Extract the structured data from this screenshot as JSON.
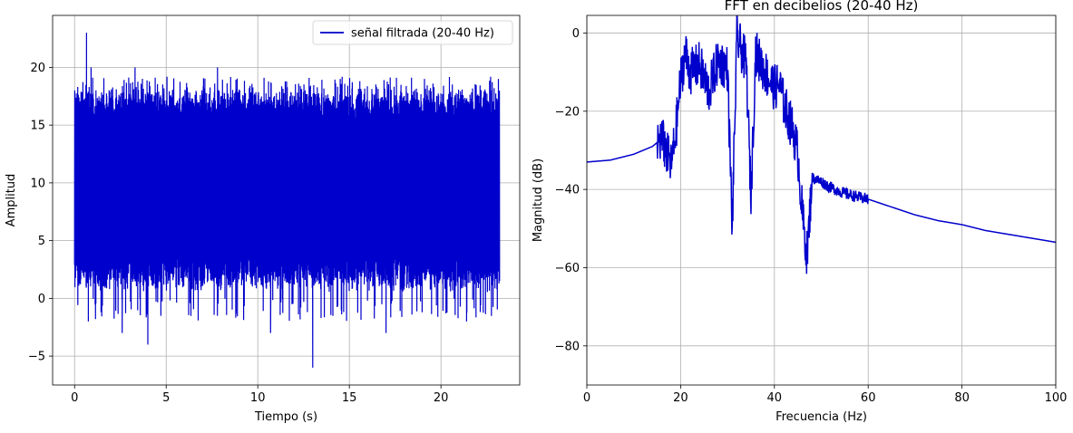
{
  "chart_data": [
    {
      "type": "line",
      "title": "",
      "xlabel": "Tiempo (s)",
      "ylabel": "Amplitud",
      "xlim": [
        -1.2,
        24.3
      ],
      "ylim": [
        -7.5,
        24.5
      ],
      "xticks": [
        0,
        5,
        10,
        15,
        20
      ],
      "yticks": [
        -5,
        0,
        5,
        10,
        15,
        20
      ],
      "grid": true,
      "legend": {
        "placement": "upper-right",
        "entries": [
          "señal filtrada (20-40 Hz)"
        ]
      },
      "series": [
        {
          "name": "señal filtrada (20-40 Hz)",
          "color": "#0000cc",
          "description_range": [
            0.0,
            23.2
          ],
          "band_low": [
            3,
            4
          ],
          "band_high": [
            15,
            17
          ],
          "peaks": [
            [
              0.65,
              23
            ],
            [
              0.9,
              20
            ],
            [
              3.3,
              20
            ],
            [
              7.8,
              20
            ],
            [
              14.5,
              19
            ],
            [
              19.1,
              19
            ]
          ],
          "troughs": [
            [
              0.75,
              -2
            ],
            [
              2.6,
              -3
            ],
            [
              4.0,
              -4
            ],
            [
              10.7,
              -3
            ],
            [
              13.0,
              -6
            ],
            [
              17.0,
              -3
            ],
            [
              21.4,
              -2
            ]
          ],
          "x": [
            0.0,
            0.15,
            0.3,
            0.45,
            0.6,
            0.65,
            0.75,
            0.9,
            1.2,
            1.8,
            2.6,
            3.3,
            4.0,
            5.0,
            6.0,
            7.0,
            7.8,
            9.0,
            10.7,
            12.0,
            13.0,
            14.5,
            16.0,
            17.0,
            18.0,
            19.1,
            20.0,
            21.4,
            22.5,
            23.2
          ],
          "y": [
            15,
            3,
            17,
            2,
            19,
            23,
            -2,
            20,
            0,
            18,
            -3,
            20,
            -4,
            18,
            0,
            17,
            20,
            1,
            -3,
            18,
            -6,
            19,
            1,
            -3,
            18,
            19,
            0,
            -2,
            17,
            15
          ]
        }
      ]
    },
    {
      "type": "line",
      "title": "FFT en decibelios (20-40 Hz)",
      "xlabel": "Frecuencia (Hz)",
      "ylabel": "Magnitud (dB)",
      "xlim": [
        0,
        100
      ],
      "ylim": [
        -90,
        4.5
      ],
      "xticks": [
        0,
        20,
        40,
        60,
        80,
        100
      ],
      "yticks": [
        0,
        -20,
        -40,
        -60,
        -80
      ],
      "grid": true,
      "series": [
        {
          "color": "#0000cc",
          "x": [
            0,
            5,
            10,
            14,
            16,
            18,
            19,
            20,
            21,
            22,
            24,
            26,
            28,
            30,
            31,
            32,
            34,
            35,
            36,
            38,
            40,
            41,
            42,
            44,
            45,
            46,
            47,
            48,
            50,
            52,
            55,
            58,
            60,
            65,
            70,
            75,
            80,
            85,
            90,
            95,
            100
          ],
          "y": [
            -33,
            -32.5,
            -31,
            -29,
            -27,
            -34,
            -25,
            -12,
            -5,
            -10,
            -8,
            -15,
            -7,
            -9,
            -50,
            -1,
            -8,
            -42,
            -5,
            -10,
            -14,
            -13,
            -18,
            -25,
            -31,
            -47,
            -57,
            -37,
            -38,
            -39.5,
            -41,
            -42,
            -42.5,
            -44.5,
            -46.5,
            -48,
            -49,
            -50.5,
            -51.5,
            -52.5,
            -53.5
          ]
        }
      ]
    }
  ]
}
